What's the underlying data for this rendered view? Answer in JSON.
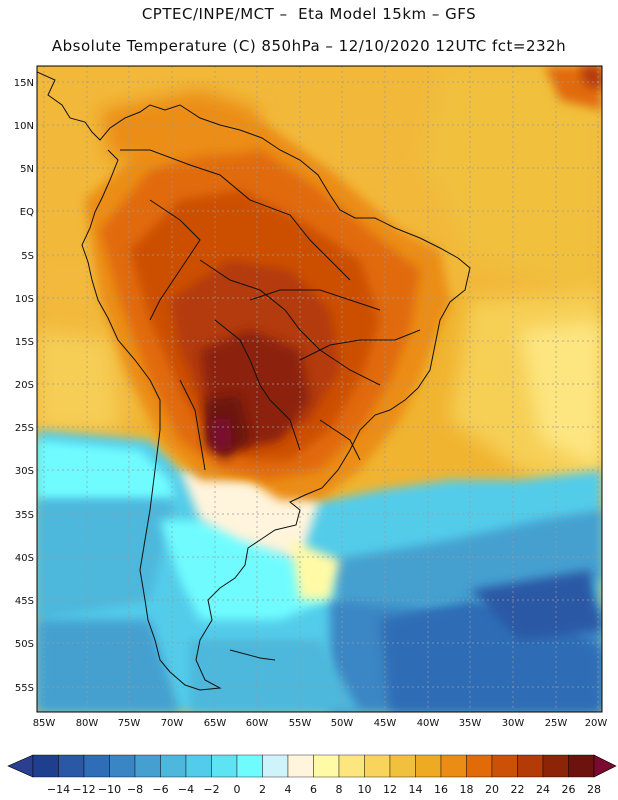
{
  "header": {
    "line1": "CPTEC/INPE/MCT –  Eta Model 15km – GFS",
    "line2": "Absolute Temperature (C) 850hPa – 12/10/2020 12UTC fct=232h"
  },
  "map": {
    "lat_labels": [
      "15N",
      "10N",
      "5N",
      "EQ",
      "5S",
      "10S",
      "15S",
      "20S",
      "25S",
      "30S",
      "35S",
      "40S",
      "45S",
      "50S",
      "55S"
    ],
    "lon_labels": [
      "85W",
      "80W",
      "75W",
      "70W",
      "65W",
      "60W",
      "55W",
      "50W",
      "45W",
      "40W",
      "35W",
      "30W",
      "25W",
      "20W"
    ]
  },
  "colorbar": {
    "labels": [
      "-14",
      "-12",
      "-10",
      "-8",
      "-6",
      "-4",
      "-2",
      "0",
      "2",
      "4",
      "6",
      "8",
      "10",
      "12",
      "14",
      "16",
      "18",
      "20",
      "22",
      "24",
      "26",
      "28"
    ],
    "colors": [
      "#1e3f8e",
      "#2a58a5",
      "#2f6db6",
      "#3a86c4",
      "#45a0d0",
      "#4db7dc",
      "#52ccea",
      "#5ee3f3",
      "#6ffcff",
      "#cff3fb",
      "#fff4dc",
      "#fffaa6",
      "#fde580",
      "#f8d45c",
      "#f1c03c",
      "#eeaa22",
      "#eb8d14",
      "#e16a09",
      "#cc5006",
      "#b33b07",
      "#8c2408",
      "#6c130d"
    ],
    "low_color": "#2a3f8e",
    "high_color": "#7a0a30"
  }
}
